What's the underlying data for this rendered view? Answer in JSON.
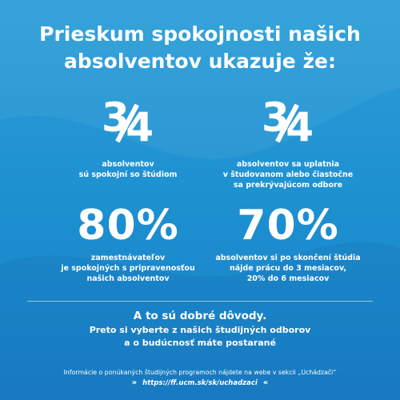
{
  "title": {
    "line1": "Prieskum spokojnosti našich",
    "line2": "absolventov ukazuje že:"
  },
  "stats": [
    {
      "value": "3⁄4",
      "numerator": "3",
      "denominator": "4",
      "lines": [
        "absolventov",
        "sú spokojní so štúdiom"
      ]
    },
    {
      "value": "3⁄4",
      "numerator": "3",
      "denominator": "4",
      "lines": [
        "absolventov sa uplatnia",
        "v študovanom alebo čiastočne",
        "sa prekrývajúcom odbore"
      ]
    },
    {
      "value": "80%",
      "lines": [
        "zamestnávateľov",
        "je spokojných s pripravenosťou",
        "našich absolventov"
      ]
    },
    {
      "value": "70%",
      "lines": [
        "absolventov si po skončení štúdia",
        "nájde prácu do 3 mesiacov,",
        "20% do 6 mesiacov"
      ]
    }
  ],
  "closing": {
    "line1": "A to sú dobré dôvody.",
    "line2": "Preto si vyberte z našich študijných odborov",
    "line3": "a o budúcnosť máte postarané"
  },
  "footer": {
    "info": "Informácie o ponúkaných študijných programoch nájdete na webe v sekcii  „Uchádzači“",
    "chevron_left": "»",
    "url": "https://ff.ucm.sk/sk/uchadzaci",
    "chevron_right": "«"
  },
  "colors": {
    "background_top": "#2d9ed8",
    "background_bottom": "#1a7fc6",
    "text": "#ffffff"
  }
}
